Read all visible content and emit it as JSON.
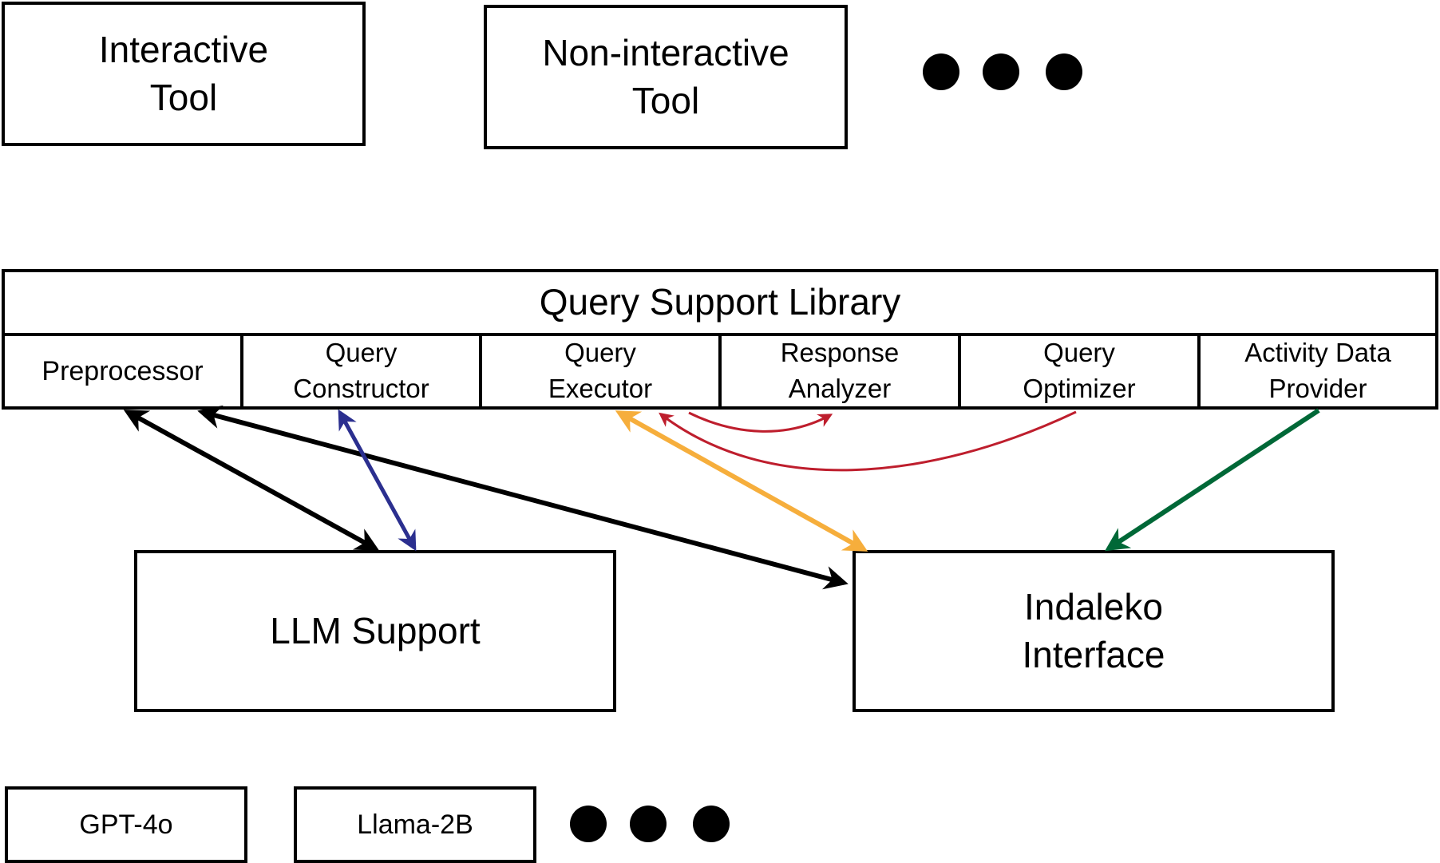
{
  "tools": {
    "interactive": {
      "line1": "Interactive",
      "line2": "Tool"
    },
    "non_interactive": {
      "line1": "Non-interactive",
      "line2": "Tool"
    }
  },
  "library": {
    "title": "Query Support Library",
    "components": {
      "preprocessor": {
        "line1": "Preprocessor"
      },
      "query_constructor": {
        "line1": "Query",
        "line2": "Constructor"
      },
      "query_executor": {
        "line1": "Query",
        "line2": "Executor"
      },
      "response_analyzer": {
        "line1": "Response",
        "line2": "Analyzer"
      },
      "query_optimizer": {
        "line1": "Query",
        "line2": "Optimizer"
      },
      "activity_data_provider": {
        "line1": "Activity Data",
        "line2": "Provider"
      }
    }
  },
  "llm_support": {
    "label": "LLM Support"
  },
  "indaleko_interface": {
    "line1": "Indaleko",
    "line2": "Interface"
  },
  "models": {
    "gpt4o": "GPT-4o",
    "llama": "Llama-2B"
  },
  "colors": {
    "black": "#000000",
    "navy_arrow": "#2B2F8F",
    "orange_arrow": "#F6AE3C",
    "red_arrow": "#BE1E2D",
    "green_arrow": "#006837"
  }
}
